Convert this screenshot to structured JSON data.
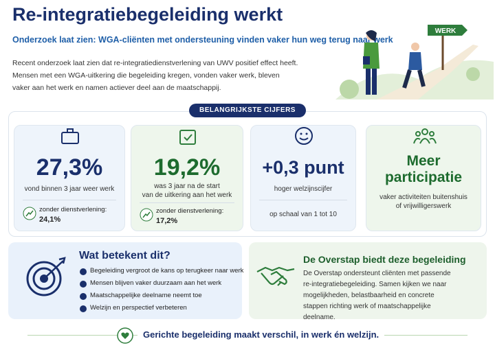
{
  "header": {
    "title": "Re-integratiebegeleiding werkt",
    "subtitle": "Onderzoek laat zien: WGA-cliënten met ondersteuning vinden vaker hun weg terug naar werk",
    "intro": [
      "Recent onderzoek laat zien dat re-integratiedienstverlening van UWV positief effect heeft.",
      "Mensen met een WGA-uitkering die begeleiding kregen, vonden vaker werk, bleven",
      "vaker aan het werk en namen actiever deel aan de maatschappij."
    ],
    "sign": "WERK"
  },
  "figures": {
    "badge": "BELANGRIJKSTE CIJFERS",
    "cards": [
      {
        "value": "27,3%",
        "label": [
          "vond binnen 3 jaar weer werk"
        ],
        "compare_label": "zonder dienstverlening:",
        "compare_value": "24,1%"
      },
      {
        "value": "19,2%",
        "label": [
          "was 3 jaar na de start",
          "van de uitkering aan het werk"
        ],
        "compare_label": "zonder dienstverlening:",
        "compare_value": "17,2%"
      },
      {
        "value": "+0,3 punt",
        "label": [
          "hoger welzijnscijfer"
        ],
        "note": "op schaal van 1 tot 10"
      },
      {
        "value": [
          "Meer",
          "participatie"
        ],
        "label": [
          "vaker activiteiten buitenshuis",
          "of vrijwilligerswerk"
        ]
      }
    ]
  },
  "meaning": {
    "title": "Wat betekent dit?",
    "items": [
      "Begeleiding vergroot de kans op terugkeer naar werk",
      "Mensen blijven vaker duurzaam aan het werk",
      "Maatschappelijke deelname neemt toe",
      "Welzijn en perspectief verbeteren"
    ]
  },
  "provider": {
    "title": "De Overstap biedt deze begeleiding",
    "text": [
      "De Overstap ondersteunt cliënten met passende",
      "re-integratiebegeleiding. Samen kijken we naar",
      "mogelijkheden, belastbaarheid en concrete",
      "stappen richting werk of maatschappelijke",
      "deelname."
    ]
  },
  "footer": "Gerichte begeleiding maakt verschil, in werk én welzijn."
}
